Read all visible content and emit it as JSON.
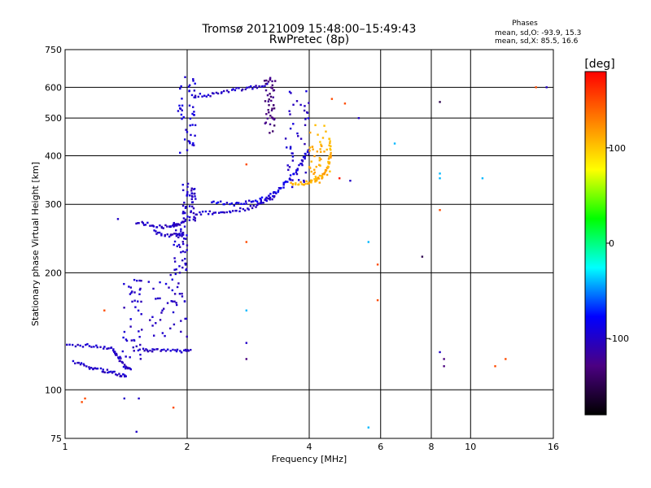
{
  "chart_data": {
    "type": "scatter",
    "title": "Tromsø 20121009 15:48:00–15:49:43",
    "subtitle": "RwPretec (8p)",
    "xlabel": "Frequency [MHz]",
    "ylabel": "Stationary phase Virtual Height [km]",
    "x_scale": "log",
    "y_scale": "log",
    "xlim": [
      1,
      16
    ],
    "ylim": [
      75,
      750
    ],
    "x_ticks": [
      1,
      2,
      4,
      6,
      8,
      10,
      16
    ],
    "x_tick_labels": [
      "1",
      "2",
      "4",
      "6",
      "8",
      "10",
      "16"
    ],
    "y_ticks": [
      75,
      100,
      200,
      300,
      400,
      500,
      600,
      750
    ],
    "y_tick_labels": [
      "75",
      "100",
      "200",
      "300",
      "400",
      "500",
      "600",
      "750"
    ],
    "grid": true,
    "colorbar": {
      "label": "[deg]",
      "range": [
        -180,
        180
      ],
      "ticks": [
        100,
        0,
        -100
      ],
      "tick_labels": [
        "100",
        "0",
        "-100"
      ],
      "colors": [
        "#000000",
        "#4b0082",
        "#0000ff",
        "#00ffff",
        "#00ff00",
        "#ffff00",
        "#ff8000",
        "#ff0000"
      ]
    },
    "stats": {
      "header": "Phases",
      "line_o": "mean, sd,O: -93.9, 15.3",
      "line_x": "mean, sd,X: 85.5, 16.6"
    },
    "traces": [
      {
        "kind": "line",
        "phase": -100,
        "x": [
          1.0,
          1.15,
          1.3,
          1.35,
          1.4,
          1.45
        ],
        "y": [
          130,
          130,
          128,
          122,
          115,
          112
        ]
      },
      {
        "kind": "line",
        "phase": -100,
        "x": [
          1.05,
          1.15,
          1.25,
          1.35,
          1.42
        ],
        "y": [
          118,
          114,
          112,
          110,
          108
        ]
      },
      {
        "kind": "cluster",
        "phase": -100,
        "x": [
          1.38,
          1.55
        ],
        "y": [
          120,
          195
        ]
      },
      {
        "kind": "line",
        "phase": -100,
        "x": [
          1.55,
          1.7,
          1.9,
          2.05
        ],
        "y": [
          127,
          126,
          126,
          126
        ]
      },
      {
        "kind": "cluster",
        "phase": -100,
        "x": [
          1.6,
          2.0
        ],
        "y": [
          135,
          200
        ]
      },
      {
        "kind": "cluster",
        "phase": -100,
        "x": [
          1.85,
          2.0
        ],
        "y": [
          200,
          270
        ]
      },
      {
        "kind": "line",
        "phase": -100,
        "x": [
          1.5,
          1.65,
          1.8,
          1.9,
          2.0
        ],
        "y": [
          270,
          265,
          262,
          266,
          275
        ]
      },
      {
        "kind": "line",
        "phase": -100,
        "x": [
          1.65,
          1.8,
          1.95
        ],
        "y": [
          255,
          250,
          250
        ]
      },
      {
        "kind": "cluster",
        "phase": -100,
        "x": [
          1.95,
          2.1
        ],
        "y": [
          270,
          340
        ]
      },
      {
        "kind": "line",
        "phase": -100,
        "x": [
          2.05,
          2.3,
          2.6,
          2.9,
          3.1,
          3.3
        ],
        "y": [
          285,
          285,
          288,
          295,
          305,
          315
        ]
      },
      {
        "kind": "line",
        "phase": -90,
        "x": [
          2.3,
          2.6,
          2.9,
          3.2,
          3.4,
          3.6,
          3.8,
          4.0
        ],
        "y": [
          305,
          300,
          305,
          315,
          330,
          350,
          380,
          420
        ]
      },
      {
        "kind": "cluster",
        "phase": -100,
        "x": [
          3.5,
          4.0
        ],
        "y": [
          330,
          600
        ]
      },
      {
        "kind": "cluster",
        "phase": -95,
        "x": [
          1.9,
          2.1
        ],
        "y": [
          400,
          650
        ]
      },
      {
        "kind": "line",
        "phase": -100,
        "x": [
          2.05,
          2.3,
          2.6,
          2.9,
          3.2
        ],
        "y": [
          570,
          575,
          590,
          600,
          610
        ]
      },
      {
        "kind": "cluster",
        "phase": -130,
        "x": [
          3.1,
          3.3
        ],
        "y": [
          450,
          640
        ]
      },
      {
        "kind": "line",
        "phase": 110,
        "x": [
          3.6,
          3.9,
          4.1,
          4.3,
          4.45,
          4.5,
          4.5
        ],
        "y": [
          340,
          340,
          345,
          355,
          370,
          400,
          450
        ]
      },
      {
        "kind": "cluster",
        "phase": 110,
        "x": [
          4.0,
          4.5
        ],
        "y": [
          340,
          480
        ]
      }
    ],
    "scattered_points": [
      {
        "x": 1.1,
        "y": 93,
        "phase": 150
      },
      {
        "x": 1.12,
        "y": 95,
        "phase": 150
      },
      {
        "x": 1.25,
        "y": 160,
        "phase": 150
      },
      {
        "x": 1.4,
        "y": 95,
        "phase": -100
      },
      {
        "x": 1.5,
        "y": 78,
        "phase": -100
      },
      {
        "x": 1.52,
        "y": 95,
        "phase": -100
      },
      {
        "x": 1.35,
        "y": 275,
        "phase": -100
      },
      {
        "x": 1.85,
        "y": 90,
        "phase": 150
      },
      {
        "x": 2.8,
        "y": 380,
        "phase": 150
      },
      {
        "x": 2.8,
        "y": 240,
        "phase": 150
      },
      {
        "x": 2.8,
        "y": 160,
        "phase": -40
      },
      {
        "x": 2.8,
        "y": 132,
        "phase": -100
      },
      {
        "x": 2.8,
        "y": 120,
        "phase": -130
      },
      {
        "x": 4.55,
        "y": 560,
        "phase": 150
      },
      {
        "x": 4.75,
        "y": 350,
        "phase": 170
      },
      {
        "x": 4.9,
        "y": 545,
        "phase": 150
      },
      {
        "x": 5.05,
        "y": 345,
        "phase": -100
      },
      {
        "x": 5.6,
        "y": 240,
        "phase": -40
      },
      {
        "x": 5.6,
        "y": 80,
        "phase": -40
      },
      {
        "x": 5.9,
        "y": 210,
        "phase": 150
      },
      {
        "x": 5.9,
        "y": 170,
        "phase": 150
      },
      {
        "x": 5.3,
        "y": 500,
        "phase": -100
      },
      {
        "x": 6.5,
        "y": 430,
        "phase": -40
      },
      {
        "x": 7.6,
        "y": 220,
        "phase": -150
      },
      {
        "x": 8.4,
        "y": 550,
        "phase": -150
      },
      {
        "x": 8.4,
        "y": 360,
        "phase": -40
      },
      {
        "x": 8.4,
        "y": 350,
        "phase": -40
      },
      {
        "x": 8.4,
        "y": 290,
        "phase": 150
      },
      {
        "x": 8.4,
        "y": 125,
        "phase": -100
      },
      {
        "x": 8.6,
        "y": 120,
        "phase": -130
      },
      {
        "x": 8.6,
        "y": 115,
        "phase": -130
      },
      {
        "x": 10.7,
        "y": 350,
        "phase": -40
      },
      {
        "x": 11.5,
        "y": 115,
        "phase": 150
      },
      {
        "x": 12.2,
        "y": 120,
        "phase": 150
      },
      {
        "x": 14.5,
        "y": 600,
        "phase": 150
      },
      {
        "x": 15.4,
        "y": 600,
        "phase": -100
      }
    ]
  }
}
